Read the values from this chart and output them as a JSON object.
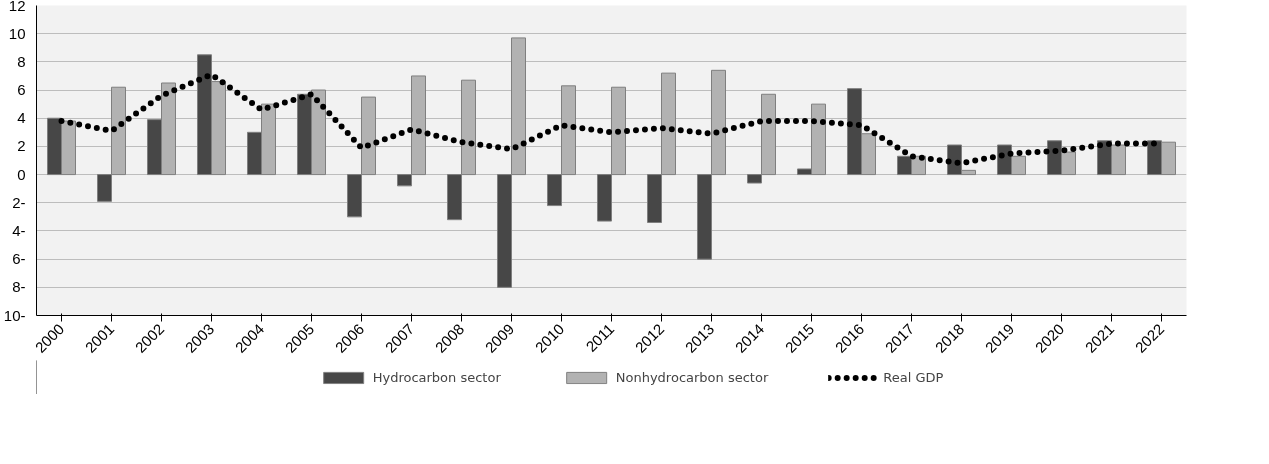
{
  "chart_data": {
    "type": "bar",
    "categories": [
      "2000",
      "2001",
      "2002",
      "2003",
      "2004",
      "2005",
      "2006",
      "2007",
      "2008",
      "2009",
      "2010",
      "2011",
      "2012",
      "2013",
      "2014",
      "2015",
      "2016",
      "2017",
      "2018",
      "2019",
      "2020",
      "2021",
      "2022"
    ],
    "series": [
      {
        "name": "Hydrocarbon sector",
        "color": "#474747",
        "values": [
          4.0,
          -1.9,
          3.9,
          8.5,
          3.0,
          5.7,
          -3.0,
          -0.8,
          -3.2,
          -8.0,
          -2.2,
          -3.3,
          -3.4,
          -6.0,
          -0.6,
          0.4,
          6.1,
          1.3,
          2.1,
          2.1,
          2.4,
          2.4,
          2.4
        ]
      },
      {
        "name": "Nonhydrocarbon sector",
        "color": "#b2b2b2",
        "values": [
          3.8,
          6.2,
          6.5,
          6.6,
          5.0,
          6.0,
          5.5,
          7.0,
          6.7,
          9.7,
          6.3,
          6.2,
          7.2,
          7.4,
          5.7,
          5.0,
          2.9,
          1.3,
          0.3,
          1.3,
          1.6,
          2.1,
          2.3
        ]
      },
      {
        "name": "Real GDP",
        "type": "line",
        "line_style": "dotted",
        "color": "#000000",
        "values": [
          3.8,
          3.1,
          5.6,
          7.1,
          4.6,
          5.7,
          1.9,
          3.2,
          2.3,
          1.8,
          3.5,
          3.0,
          3.3,
          2.9,
          3.8,
          3.8,
          3.5,
          1.3,
          0.8,
          1.5,
          1.7,
          2.2,
          2.2
        ]
      }
    ],
    "ylim": [
      -10,
      12
    ],
    "yticks": [
      {
        "value": -10,
        "label": "10-"
      },
      {
        "value": -8,
        "label": "8-"
      },
      {
        "value": -6,
        "label": "6-"
      },
      {
        "value": -4,
        "label": "4-"
      },
      {
        "value": -2,
        "label": "2-"
      },
      0,
      2,
      4,
      6,
      8,
      10,
      12
    ],
    "grid": "y",
    "legend": "bottom"
  }
}
